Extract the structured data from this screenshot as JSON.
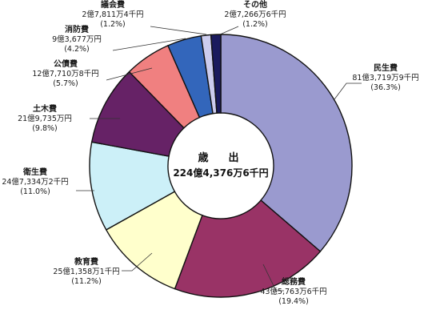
{
  "chart_data": {
    "type": "pie",
    "variant": "donut",
    "center_title": "歳　出",
    "center_total": "224億4,376万6千円",
    "slices": [
      {
        "name": "民生費",
        "amount": "81億3,719万9千円",
        "percent": 36.3,
        "percent_label": "(36.3%)",
        "color": "#9a9acf"
      },
      {
        "name": "総務費",
        "amount": "43億5,763万6千円",
        "percent": 19.4,
        "percent_label": "(19.4%)",
        "color": "#993366"
      },
      {
        "name": "教育費",
        "amount": "25億1,358万1千円",
        "percent": 11.2,
        "percent_label": "(11.2%)",
        "color": "#ffffcc"
      },
      {
        "name": "衛生費",
        "amount": "24億7,334万2千円",
        "percent": 11.0,
        "percent_label": "(11.0%)",
        "color": "#ccf0f8"
      },
      {
        "name": "土木費",
        "amount": "21億9,735万円",
        "percent": 9.8,
        "percent_label": "(9.8%)",
        "color": "#662266"
      },
      {
        "name": "公債費",
        "amount": "12億7,710万8千円",
        "percent": 5.7,
        "percent_label": "(5.7%)",
        "color": "#f08080"
      },
      {
        "name": "消防費",
        "amount": "9億3,677万円",
        "percent": 4.2,
        "percent_label": "(4.2%)",
        "color": "#3366bb"
      },
      {
        "name": "議会費",
        "amount": "2億7,811万4千円",
        "percent": 1.2,
        "percent_label": "(1.2%)",
        "color": "#ccccee"
      },
      {
        "name": "その他",
        "amount": "2億7,266万6千円",
        "percent": 1.2,
        "percent_label": "(1.2%)",
        "color": "#1a1a5e"
      }
    ]
  }
}
